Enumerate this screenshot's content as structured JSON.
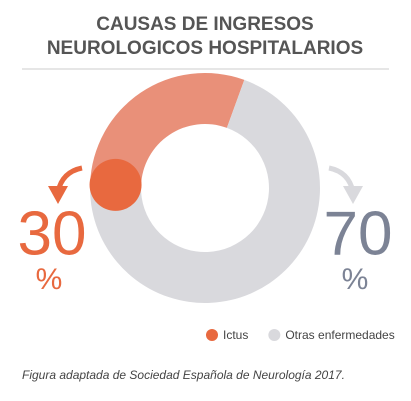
{
  "chart_data": {
    "type": "pie",
    "donut": true,
    "title": "CAUSAS DE INGRESOS",
    "subtitle": "NEUROLOGICOS HOSPITALARIOS",
    "categories": [
      "Ictus",
      "Otras enfermedades"
    ],
    "values": [
      30,
      70
    ],
    "unit": "%",
    "colors": [
      "#e99079",
      "#d9d9dd"
    ],
    "legend_colors": [
      "#e8693f",
      "#d9d9dd"
    ],
    "label_colors": [
      "#e8693f",
      "#7c8395"
    ],
    "caption": "Figura adaptada de Sociedad Española de Neurología 2017."
  }
}
